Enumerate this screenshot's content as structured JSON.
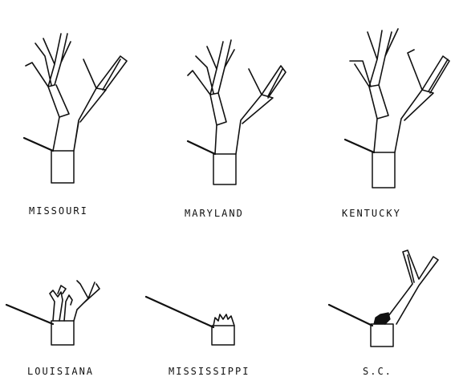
{
  "panels": [
    {
      "id": "missouri",
      "label": "MISSOURI"
    },
    {
      "id": "maryland",
      "label": "MARYLAND"
    },
    {
      "id": "kentucky",
      "label": "KENTUCKY"
    },
    {
      "id": "louisiana",
      "label": "LOUISIANA"
    },
    {
      "id": "mississippi",
      "label": "MISSISSIPPI"
    },
    {
      "id": "sc",
      "label": "S.C."
    }
  ]
}
